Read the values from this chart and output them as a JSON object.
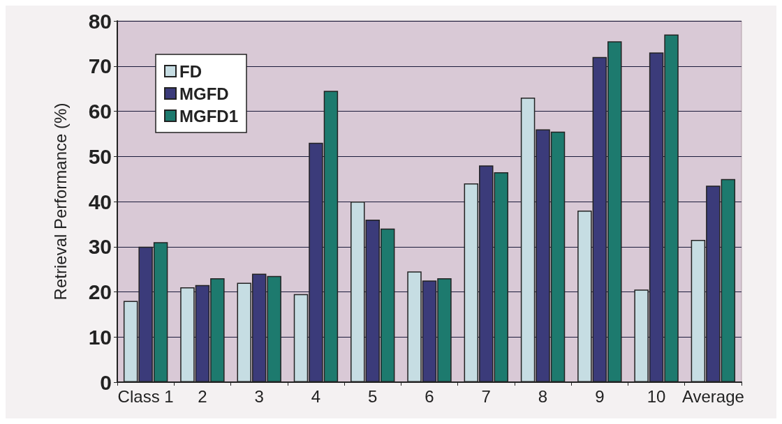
{
  "chart_data": {
    "type": "bar",
    "ylabel": "Retrieval Performance (%)",
    "categories": [
      "Class 1",
      "2",
      "3",
      "4",
      "5",
      "6",
      "7",
      "8",
      "9",
      "10",
      "Average"
    ],
    "series": [
      {
        "name": "FD",
        "color": "#c6dde3",
        "values": [
          18,
          21,
          22,
          19.5,
          40,
          24.5,
          44,
          63,
          38,
          20.5,
          31.5
        ]
      },
      {
        "name": "MGFD",
        "color": "#3b3b7a",
        "values": [
          30,
          21.5,
          24,
          53,
          36,
          22.5,
          48,
          56,
          72,
          73,
          43.5
        ]
      },
      {
        "name": "MGFD1",
        "color": "#1d7a6e",
        "values": [
          31,
          23,
          23.5,
          64.5,
          34,
          23,
          46.5,
          55.5,
          75.5,
          77,
          45
        ]
      }
    ],
    "ylim": [
      0,
      80
    ],
    "yticks": [
      0,
      10,
      20,
      30,
      40,
      50,
      60,
      70,
      80
    ],
    "grid": "y",
    "legend": "top left"
  }
}
